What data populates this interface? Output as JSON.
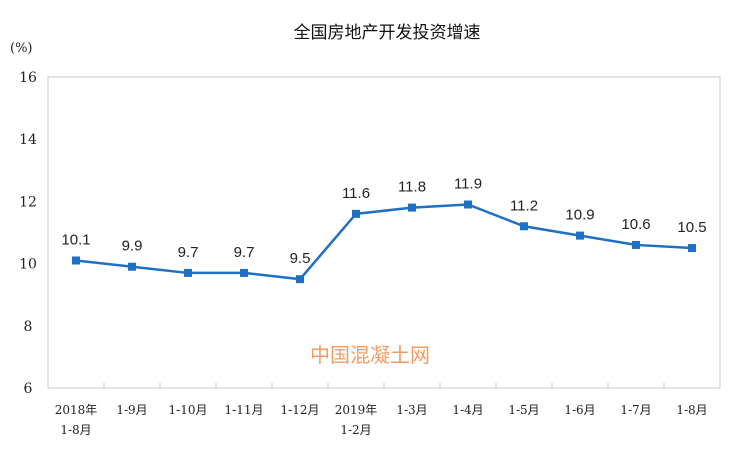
{
  "chart_data": {
    "type": "line",
    "title": "全国房地产开发投资增速",
    "ylabel": "(%)",
    "xlabel": "",
    "ylim": [
      6,
      16
    ],
    "yticks": [
      6,
      8,
      10,
      12,
      14,
      16
    ],
    "categories": [
      [
        "2018年",
        "1-8月"
      ],
      [
        "1-9月"
      ],
      [
        "1-10月"
      ],
      [
        "1-11月"
      ],
      [
        "1-12月"
      ],
      [
        "2019年",
        "1-2月"
      ],
      [
        "1-3月"
      ],
      [
        "1-4月"
      ],
      [
        "1-5月"
      ],
      [
        "1-6月"
      ],
      [
        "1-7月"
      ],
      [
        "1-8月"
      ]
    ],
    "series": [
      {
        "name": "全国房地产开发投资增速",
        "values": [
          10.1,
          9.9,
          9.7,
          9.7,
          9.5,
          11.6,
          11.8,
          11.9,
          11.2,
          10.9,
          10.6,
          10.5
        ],
        "color": "#1f6fc5"
      }
    ],
    "grid": false,
    "legend": "none",
    "watermark": "中国混凝土网"
  }
}
